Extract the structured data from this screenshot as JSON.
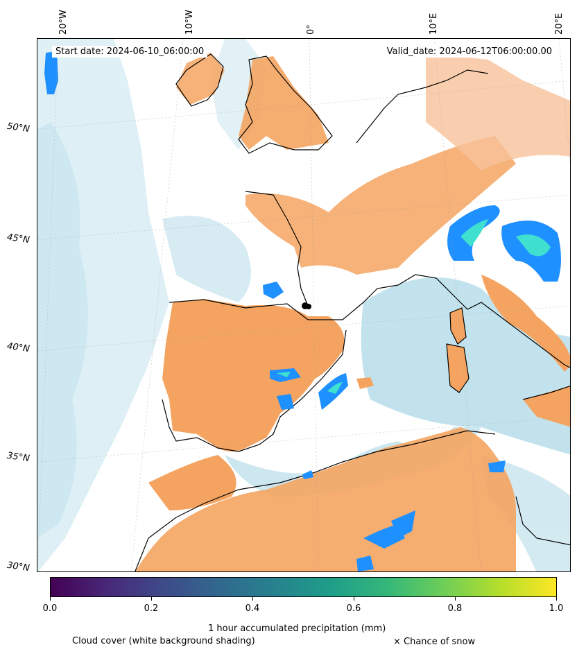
{
  "map": {
    "start_date": "Start date: 2024-06-10_06:00:00",
    "valid_date": "Valid_date: 2024-06-12T06:00:00.00",
    "longitude_labels": [
      "20°W",
      "10°W",
      "0°",
      "10°E",
      "20°E"
    ],
    "latitude_labels": [
      "50°N",
      "45°N",
      "40°N",
      "35°N",
      "30°N"
    ],
    "colors": {
      "land_clear": "#f4a460",
      "sea_clouds": "#add8e6",
      "precipitation": "#1e90ff",
      "precip_heavy": "#40e0d0",
      "coastline": "#000000"
    }
  },
  "colorbar": {
    "ticks": [
      "0.0",
      "0.2",
      "0.4",
      "0.6",
      "0.8",
      "1.0"
    ],
    "label": "1 hour accumulated precipitation (mm)",
    "colormap": "viridis"
  },
  "legend": {
    "cloud_cover": "Cloud cover (white background shading)",
    "snow": "× Chance of snow"
  }
}
